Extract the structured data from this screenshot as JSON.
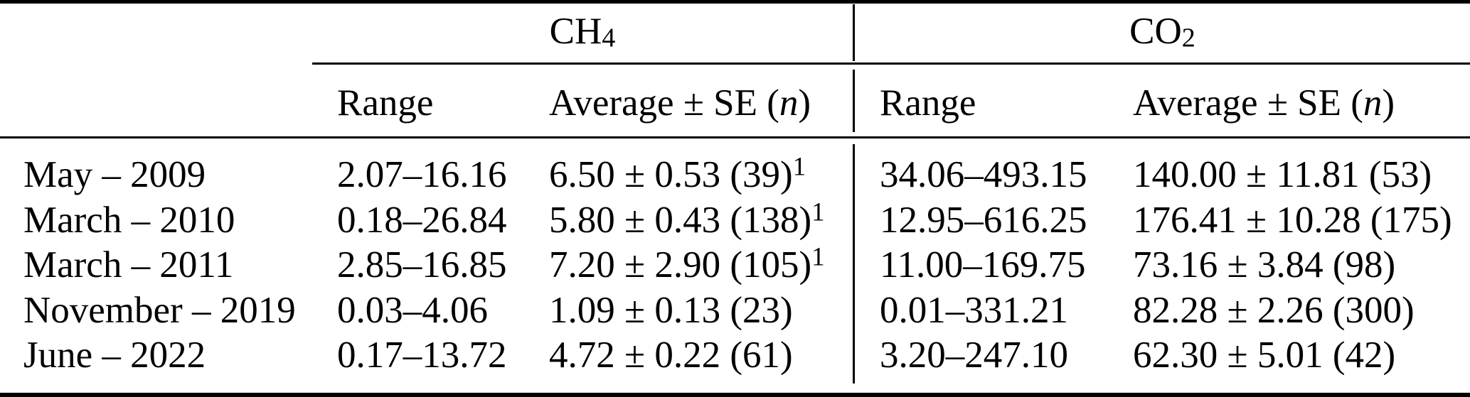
{
  "meta": {
    "background": "#ffffff",
    "text_color": "#000000",
    "rule_color": "#000000"
  },
  "header": {
    "ch4": {
      "base": "CH",
      "subscript": "4"
    },
    "co2": {
      "base": "CO",
      "subscript": "2"
    },
    "subcolumns": {
      "range": "Range",
      "avg_prefix": "Average ± SE (",
      "avg_n": "n",
      "avg_suffix": ")"
    }
  },
  "rows": [
    {
      "label": "May – 2009",
      "ch4_range": "2.07–16.16",
      "ch4_avg": "6.50 ± 0.53 (39)",
      "ch4_note": "1",
      "co2_range": "34.06–493.15",
      "co2_avg": "140.00 ± 11.81 (53)"
    },
    {
      "label": "March – 2010",
      "ch4_range": "0.18–26.84",
      "ch4_avg": "5.80 ± 0.43 (138)",
      "ch4_note": "1",
      "co2_range": "12.95–616.25",
      "co2_avg": "176.41 ± 10.28 (175)"
    },
    {
      "label": "March – 2011",
      "ch4_range": "2.85–16.85",
      "ch4_avg": "7.20 ± 2.90 (105)",
      "ch4_note": "1",
      "co2_range": "11.00–169.75",
      "co2_avg": "73.16 ± 3.84 (98)"
    },
    {
      "label": "November – 2019",
      "ch4_range": "0.03–4.06",
      "ch4_avg": "1.09 ± 0.13 (23)",
      "ch4_note": "",
      "co2_range": "0.01–331.21",
      "co2_avg": "82.28 ± 2.26 (300)"
    },
    {
      "label": "June – 2022",
      "ch4_range": "0.17–13.72",
      "ch4_avg": "4.72 ± 0.22 (61)",
      "ch4_note": "",
      "co2_range": "3.20–247.10",
      "co2_avg": "62.30 ± 5.01 (42)"
    }
  ],
  "chart_data": {
    "type": "table",
    "column_groups": [
      "",
      "CH4",
      "CH4",
      "CO2",
      "CO2"
    ],
    "columns": [
      "",
      "Range",
      "Average ± SE (n)",
      "Range",
      "Average ± SE (n)"
    ],
    "rows": [
      [
        "May – 2009",
        "2.07–16.16",
        "6.50 ± 0.53 (39)¹",
        "34.06–493.15",
        "140.00 ± 11.81 (53)"
      ],
      [
        "March – 2010",
        "0.18–26.84",
        "5.80 ± 0.43 (138)¹",
        "12.95–616.25",
        "176.41 ± 10.28 (175)"
      ],
      [
        "March – 2011",
        "2.85–16.85",
        "7.20 ± 2.90 (105)¹",
        "11.00–169.75",
        "73.16 ± 3.84 (98)"
      ],
      [
        "November – 2019",
        "0.03–4.06",
        "1.09 ± 0.13 (23)",
        "0.01–331.21",
        "82.28 ± 2.26 (300)"
      ],
      [
        "June – 2022",
        "0.17–13.72",
        "4.72 ± 0.22 (61)",
        "3.20–247.10",
        "62.30 ± 5.01 (42)"
      ]
    ]
  }
}
